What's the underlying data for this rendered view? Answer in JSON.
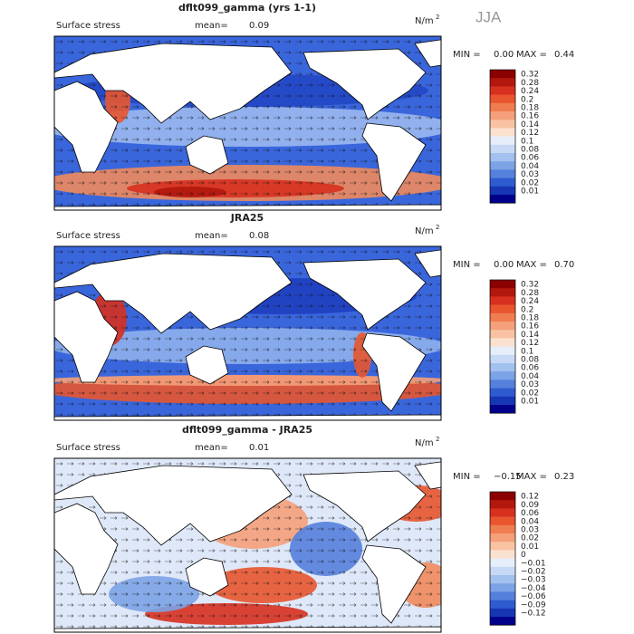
{
  "header": {
    "season": "JJA"
  },
  "panels": [
    {
      "title": "dflt099_gamma (yrs 1-1)",
      "subtitle": "Surface stress",
      "mean_label": "mean=",
      "mean": "0.09",
      "units": "N/m",
      "units_exp": "2",
      "min_label": "MIN =",
      "min": "0.00",
      "max_label": "MAX =",
      "max": "0.44",
      "colorbar": {
        "labels": [
          "0.32",
          "0.28",
          "0.24",
          "0.2",
          "0.18",
          "0.16",
          "0.14",
          "0.12",
          "0.1",
          "0.08",
          "0.06",
          "0.04",
          "0.03",
          "0.02",
          "0.01"
        ],
        "colors": [
          "#8b0000",
          "#b2180e",
          "#d7301f",
          "#e8552e",
          "#f07d4f",
          "#f5a07a",
          "#f8c2a3",
          "#fbe1cf",
          "#e6eefa",
          "#c8d9f5",
          "#a3c1ee",
          "#7ca3e6",
          "#5580dc",
          "#2f5bd0",
          "#1636b4",
          "#00008b"
        ]
      }
    },
    {
      "title": "JRA25",
      "subtitle": "Surface stress",
      "mean_label": "mean=",
      "mean": "0.08",
      "units": "N/m",
      "units_exp": "2",
      "min_label": "MIN =",
      "min": "0.00",
      "max_label": "MAX =",
      "max": "0.70",
      "colorbar": {
        "labels": [
          "0.32",
          "0.28",
          "0.24",
          "0.2",
          "0.18",
          "0.16",
          "0.14",
          "0.12",
          "0.1",
          "0.08",
          "0.06",
          "0.04",
          "0.03",
          "0.02",
          "0.01"
        ],
        "colors": [
          "#8b0000",
          "#b2180e",
          "#d7301f",
          "#e8552e",
          "#f07d4f",
          "#f5a07a",
          "#f8c2a3",
          "#fbe1cf",
          "#e6eefa",
          "#c8d9f5",
          "#a3c1ee",
          "#7ca3e6",
          "#5580dc",
          "#2f5bd0",
          "#1636b4",
          "#00008b"
        ]
      }
    },
    {
      "title": "dflt099_gamma - JRA25",
      "subtitle": "Surface stress",
      "mean_label": "mean=",
      "mean": "0.01",
      "units": "N/m",
      "units_exp": "2",
      "min_label": "MIN =",
      "min": "−0.15",
      "max_label": "MAX =",
      "max": "0.23",
      "colorbar": {
        "labels": [
          "0.12",
          "0.09",
          "0.06",
          "0.04",
          "0.03",
          "0.02",
          "0.01",
          "0",
          "−0.01",
          "−0.02",
          "−0.03",
          "−0.04",
          "−0.06",
          "−0.09",
          "−0.12"
        ],
        "colors": [
          "#8b0000",
          "#b2180e",
          "#d7301f",
          "#e8552e",
          "#f07d4f",
          "#f5a07a",
          "#f8c2a3",
          "#fbe1cf",
          "#e6eefa",
          "#c8d9f5",
          "#a3c1ee",
          "#7ca3e6",
          "#5580dc",
          "#2f5bd0",
          "#1636b4",
          "#00008b"
        ]
      }
    }
  ]
}
